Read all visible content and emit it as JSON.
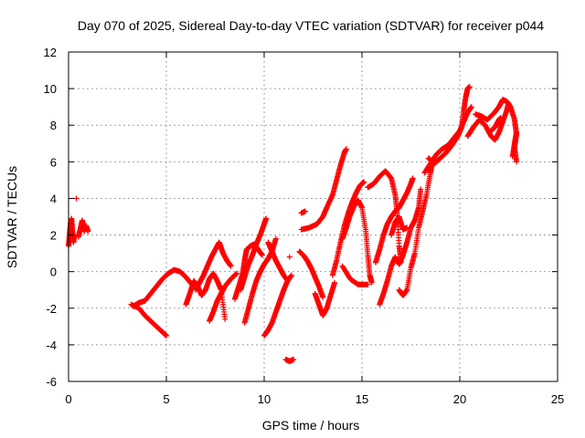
{
  "chart_data": {
    "type": "scatter",
    "title": "Day 070 of 2025, Sidereal Day-to-day VTEC variation (SDTVAR) for receiver p044",
    "xlabel": "GPS time / hours",
    "ylabel": "SDTVAR / TECUs",
    "xlim": [
      0,
      25
    ],
    "ylim": [
      -6,
      12
    ],
    "xticks": [
      0,
      5,
      10,
      15,
      20,
      25
    ],
    "yticks": [
      -6,
      -4,
      -2,
      0,
      2,
      4,
      6,
      8,
      10,
      12
    ],
    "grid": true,
    "marker": "+",
    "color": "#ff0000",
    "segments": [
      [
        [
          0.0,
          1.4
        ],
        [
          0.05,
          2.0
        ],
        [
          0.1,
          2.6
        ],
        [
          0.15,
          2.9
        ],
        [
          0.2,
          2.2
        ],
        [
          0.25,
          1.6
        ],
        [
          0.3,
          2.0
        ]
      ],
      [
        [
          0.5,
          1.9
        ],
        [
          0.6,
          2.3
        ],
        [
          0.7,
          2.8
        ],
        [
          0.8,
          2.2
        ],
        [
          0.9,
          2.5
        ],
        [
          1.0,
          2.2
        ]
      ],
      [
        [
          3.2,
          -1.8
        ],
        [
          3.6,
          -2.0
        ],
        [
          3.9,
          -2.4
        ],
        [
          4.2,
          -2.7
        ],
        [
          4.5,
          -3.0
        ],
        [
          4.8,
          -3.3
        ],
        [
          5.0,
          -3.5
        ]
      ],
      [
        [
          3.3,
          -1.9
        ],
        [
          3.6,
          -1.7
        ],
        [
          3.9,
          -1.6
        ],
        [
          4.2,
          -1.2
        ],
        [
          4.5,
          -0.8
        ],
        [
          4.8,
          -0.4
        ],
        [
          5.1,
          -0.1
        ],
        [
          5.4,
          0.1
        ],
        [
          5.7,
          0.0
        ],
        [
          6.0,
          -0.3
        ],
        [
          6.3,
          -0.7
        ]
      ],
      [
        [
          6.0,
          -1.8
        ],
        [
          6.2,
          -1.2
        ],
        [
          6.4,
          -0.5
        ],
        [
          6.6,
          -0.8
        ],
        [
          6.8,
          -1.3
        ],
        [
          7.0,
          -1.0
        ],
        [
          7.2,
          -0.4
        ],
        [
          7.4,
          -0.1
        ],
        [
          7.6,
          -0.5
        ],
        [
          7.8,
          -1.0
        ],
        [
          8.0,
          -2.6
        ]
      ],
      [
        [
          6.5,
          -1.0
        ],
        [
          6.7,
          -0.6
        ],
        [
          6.9,
          -0.2
        ],
        [
          7.1,
          0.3
        ],
        [
          7.3,
          0.8
        ],
        [
          7.5,
          1.2
        ],
        [
          7.7,
          1.6
        ],
        [
          7.9,
          1.0
        ],
        [
          8.1,
          0.6
        ],
        [
          8.3,
          0.3
        ]
      ],
      [
        [
          7.2,
          -2.7
        ],
        [
          7.4,
          -2.2
        ],
        [
          7.6,
          -1.6
        ],
        [
          7.8,
          -1.2
        ],
        [
          8.0,
          -0.8
        ],
        [
          8.3,
          -0.4
        ],
        [
          8.6,
          -0.1
        ]
      ],
      [
        [
          8.5,
          -1.5
        ],
        [
          8.7,
          -0.8
        ],
        [
          8.9,
          -0.1
        ],
        [
          9.0,
          0.6
        ],
        [
          9.1,
          1.2
        ],
        [
          9.3,
          1.4
        ],
        [
          9.5,
          1.5
        ],
        [
          9.7,
          1.2
        ],
        [
          9.9,
          0.9
        ]
      ],
      [
        [
          8.8,
          -1.0
        ],
        [
          9.0,
          -0.3
        ],
        [
          9.2,
          0.4
        ],
        [
          9.4,
          0.9
        ],
        [
          9.6,
          1.5
        ],
        [
          9.8,
          2.0
        ],
        [
          10.0,
          2.6
        ],
        [
          10.1,
          2.9
        ]
      ],
      [
        [
          9.0,
          -2.8
        ],
        [
          9.2,
          -2.0
        ],
        [
          9.4,
          -1.2
        ],
        [
          9.6,
          -0.5
        ],
        [
          9.8,
          0.0
        ],
        [
          10.0,
          0.4
        ],
        [
          10.2,
          0.7
        ],
        [
          10.4,
          1.1
        ],
        [
          10.6,
          1.8
        ]
      ],
      [
        [
          10.0,
          -3.5
        ],
        [
          10.2,
          -3.2
        ],
        [
          10.4,
          -2.8
        ],
        [
          10.6,
          -2.2
        ],
        [
          10.8,
          -1.6
        ],
        [
          11.0,
          -1.0
        ],
        [
          11.2,
          -0.5
        ],
        [
          11.4,
          -0.2
        ]
      ],
      [
        [
          10.2,
          1.6
        ],
        [
          10.4,
          1.1
        ],
        [
          10.6,
          0.6
        ],
        [
          10.8,
          0.2
        ],
        [
          11.0,
          -0.2
        ],
        [
          11.2,
          -0.5
        ]
      ],
      [
        [
          11.1,
          -4.8
        ],
        [
          11.3,
          -4.9
        ],
        [
          11.5,
          -4.8
        ]
      ],
      [
        [
          11.3,
          0.8
        ]
      ],
      [
        [
          11.8,
          1.1
        ],
        [
          12.0,
          0.9
        ],
        [
          12.2,
          0.6
        ],
        [
          12.4,
          0.2
        ],
        [
          12.6,
          -0.3
        ],
        [
          12.8,
          -0.8
        ],
        [
          13.0,
          -1.4
        ]
      ],
      [
        [
          12.6,
          -1.2
        ],
        [
          12.8,
          -1.8
        ],
        [
          13.0,
          -2.4
        ],
        [
          13.2,
          -2.0
        ],
        [
          13.4,
          -1.3
        ],
        [
          13.6,
          -0.6
        ]
      ],
      [
        [
          11.9,
          2.3
        ],
        [
          12.3,
          2.4
        ],
        [
          12.7,
          2.6
        ],
        [
          13.0,
          3.0
        ],
        [
          13.2,
          3.5
        ],
        [
          13.5,
          4.2
        ],
        [
          13.7,
          5.0
        ],
        [
          13.9,
          5.8
        ],
        [
          14.1,
          6.5
        ],
        [
          14.2,
          6.7
        ]
      ],
      [
        [
          11.9,
          3.2
        ],
        [
          12.1,
          3.3
        ]
      ],
      [
        [
          13.5,
          -0.2
        ],
        [
          13.7,
          0.6
        ],
        [
          13.9,
          1.6
        ],
        [
          14.1,
          2.5
        ],
        [
          14.3,
          3.2
        ],
        [
          14.5,
          3.8
        ],
        [
          14.7,
          4.3
        ],
        [
          14.9,
          4.7
        ],
        [
          15.1,
          4.9
        ]
      ],
      [
        [
          14.0,
          1.8
        ],
        [
          14.2,
          2.4
        ],
        [
          14.4,
          3.1
        ],
        [
          14.6,
          3.6
        ],
        [
          14.8,
          3.9
        ],
        [
          15.0,
          3.5
        ],
        [
          15.2,
          2.2
        ],
        [
          15.3,
          0.9
        ],
        [
          15.4,
          -0.2
        ],
        [
          15.5,
          -0.6
        ]
      ],
      [
        [
          14.0,
          0.3
        ],
        [
          14.4,
          -0.4
        ],
        [
          14.8,
          -0.7
        ],
        [
          15.3,
          -0.7
        ]
      ],
      [
        [
          15.3,
          4.6
        ],
        [
          15.6,
          4.8
        ],
        [
          15.9,
          5.2
        ],
        [
          16.2,
          5.5
        ],
        [
          16.5,
          5.1
        ],
        [
          16.7,
          4.2
        ],
        [
          16.8,
          3.2
        ],
        [
          16.9,
          1.4
        ],
        [
          17.0,
          0.5
        ]
      ],
      [
        [
          15.7,
          0.5
        ],
        [
          15.9,
          1.2
        ],
        [
          16.1,
          2.0
        ],
        [
          16.3,
          2.6
        ],
        [
          16.5,
          3.0
        ],
        [
          16.7,
          3.3
        ],
        [
          16.9,
          3.5
        ],
        [
          17.1,
          3.9
        ],
        [
          17.3,
          4.3
        ],
        [
          17.5,
          4.8
        ],
        [
          17.6,
          5.1
        ]
      ],
      [
        [
          15.9,
          -1.8
        ],
        [
          16.1,
          -1.2
        ],
        [
          16.3,
          -0.5
        ],
        [
          16.5,
          0.3
        ],
        [
          16.7,
          0.8
        ],
        [
          16.9,
          0.4
        ],
        [
          17.1,
          0.9
        ],
        [
          17.3,
          1.6
        ],
        [
          17.5,
          2.4
        ],
        [
          17.7,
          2.8
        ],
        [
          17.9,
          3.5
        ],
        [
          18.0,
          4.5
        ]
      ],
      [
        [
          16.9,
          -1.0
        ],
        [
          17.1,
          -1.3
        ],
        [
          17.3,
          -1.0
        ],
        [
          17.5,
          0.2
        ],
        [
          17.7,
          1.0
        ],
        [
          17.9,
          2.4
        ],
        [
          18.1,
          3.3
        ],
        [
          18.3,
          4.2
        ],
        [
          18.5,
          5.4
        ],
        [
          18.6,
          6.0
        ],
        [
          18.4,
          6.2
        ]
      ],
      [
        [
          16.5,
          2.0
        ],
        [
          16.7,
          2.7
        ],
        [
          16.9,
          3.0
        ],
        [
          17.1,
          2.3
        ],
        [
          17.3,
          2.4
        ]
      ],
      [
        [
          18.2,
          5.4
        ],
        [
          18.5,
          5.9
        ],
        [
          18.8,
          6.4
        ],
        [
          19.1,
          6.7
        ],
        [
          19.4,
          6.9
        ],
        [
          19.7,
          7.3
        ],
        [
          20.0,
          7.7
        ],
        [
          20.2,
          8.2
        ],
        [
          20.4,
          8.7
        ],
        [
          20.6,
          9.0
        ]
      ],
      [
        [
          18.7,
          5.9
        ],
        [
          19.0,
          6.2
        ],
        [
          19.3,
          6.5
        ],
        [
          19.6,
          6.9
        ],
        [
          19.9,
          7.4
        ],
        [
          20.1,
          7.9
        ],
        [
          20.2,
          8.8
        ],
        [
          20.3,
          9.5
        ],
        [
          20.4,
          10.0
        ],
        [
          20.5,
          10.1
        ]
      ],
      [
        [
          20.4,
          7.4
        ],
        [
          20.7,
          7.9
        ],
        [
          21.0,
          8.3
        ],
        [
          21.3,
          8.0
        ],
        [
          21.6,
          7.4
        ],
        [
          21.8,
          7.2
        ],
        [
          22.0,
          7.6
        ],
        [
          22.2,
          8.2
        ],
        [
          22.4,
          8.8
        ],
        [
          22.5,
          9.2
        ]
      ],
      [
        [
          20.8,
          8.6
        ],
        [
          21.1,
          8.5
        ],
        [
          21.4,
          8.3
        ],
        [
          21.7,
          8.6
        ],
        [
          22.0,
          9.0
        ],
        [
          22.2,
          9.4
        ],
        [
          22.4,
          9.3
        ],
        [
          22.6,
          9.0
        ],
        [
          22.8,
          8.3
        ],
        [
          22.9,
          7.5
        ],
        [
          22.8,
          6.8
        ],
        [
          22.9,
          6.0
        ]
      ],
      [
        [
          21.6,
          7.7
        ],
        [
          21.8,
          7.9
        ],
        [
          22.0,
          8.3
        ],
        [
          22.1,
          8.4
        ]
      ],
      [
        [
          22.7,
          6.3
        ],
        [
          22.8,
          7.0
        ],
        [
          22.9,
          7.6
        ]
      ]
    ],
    "outliers": [
      [
        0.4,
        4.0
      ]
    ]
  }
}
